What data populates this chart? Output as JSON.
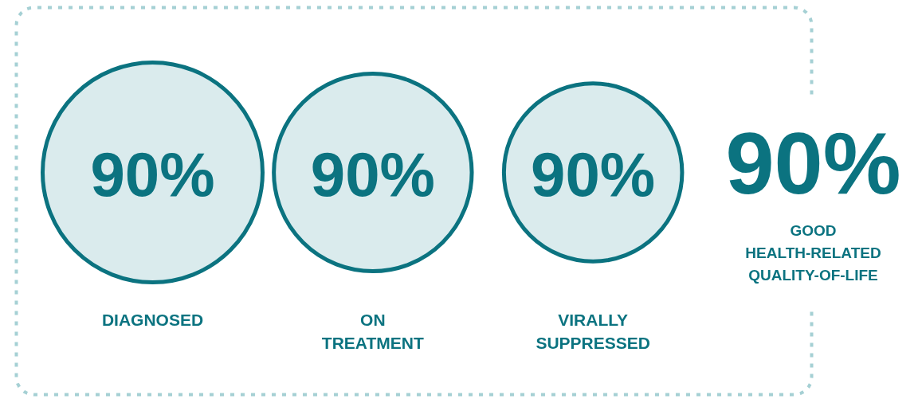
{
  "chart_data": {
    "type": "other",
    "categories": [
      "DIAGNOSED",
      "ON TREATMENT",
      "VIRALLY SUPPRESSED",
      "GOOD HEALTH-RELATED QUALITY-OF-LIFE"
    ],
    "series": [
      {
        "color": "#daebed",
        "values": [
          90,
          90,
          90,
          null
        ],
        "value_labels": [
          "90%",
          "90%",
          "90%",
          null
        ]
      },
      {
        "color": "#0b7380",
        "values": [
          null,
          null,
          null,
          90
        ],
        "value_labels": [
          null,
          null,
          null,
          "90%"
        ]
      }
    ]
  }
}
